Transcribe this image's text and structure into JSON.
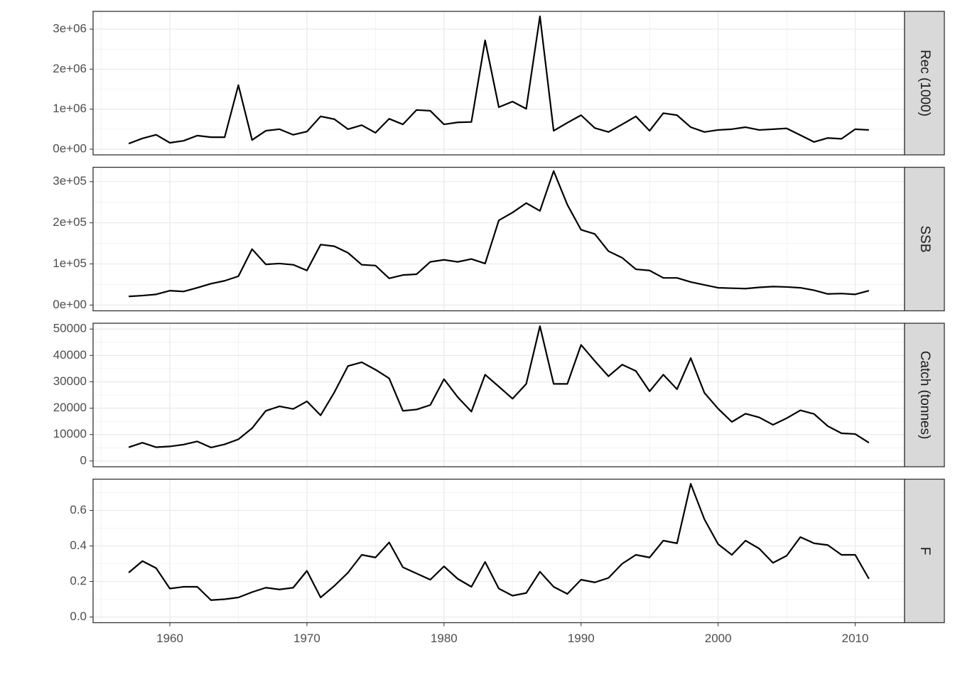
{
  "chart_data": [
    {
      "type": "line",
      "facet": "Rec (1000)",
      "color": "#000000",
      "grid": true,
      "x": [
        1957,
        1958,
        1959,
        1960,
        1961,
        1962,
        1963,
        1964,
        1965,
        1966,
        1967,
        1968,
        1969,
        1970,
        1971,
        1972,
        1973,
        1974,
        1975,
        1976,
        1977,
        1978,
        1979,
        1980,
        1981,
        1982,
        1983,
        1984,
        1985,
        1986,
        1987,
        1988,
        1989,
        1990,
        1991,
        1992,
        1993,
        1994,
        1995,
        1996,
        1997,
        1998,
        1999,
        2000,
        2001,
        2002,
        2003,
        2004,
        2005,
        2006,
        2007,
        2008,
        2009,
        2010,
        2011
      ],
      "values": [
        140000,
        270000,
        360000,
        160000,
        210000,
        340000,
        300000,
        300000,
        1600000,
        230000,
        460000,
        500000,
        360000,
        440000,
        820000,
        750000,
        500000,
        600000,
        410000,
        760000,
        620000,
        980000,
        960000,
        620000,
        670000,
        680000,
        2720000,
        1050000,
        1190000,
        1010000,
        3320000,
        460000,
        660000,
        850000,
        530000,
        430000,
        620000,
        820000,
        460000,
        900000,
        850000,
        550000,
        430000,
        480000,
        500000,
        550000,
        480000,
        500000,
        520000,
        350000,
        180000,
        280000,
        260000,
        500000,
        480000
      ],
      "xlim": [
        1954.4,
        2013.6
      ],
      "ylim": [
        -142000,
        3444000
      ],
      "yticks": [
        {
          "value": 0,
          "label": "0e+00"
        },
        {
          "value": 1000000,
          "label": "1e+06"
        },
        {
          "value": 2000000,
          "label": "2e+06"
        },
        {
          "value": 3000000,
          "label": "3e+06"
        }
      ]
    },
    {
      "type": "line",
      "facet": "SSB",
      "color": "#000000",
      "grid": true,
      "x": [
        1957,
        1958,
        1959,
        1960,
        1961,
        1962,
        1963,
        1964,
        1965,
        1966,
        1967,
        1968,
        1969,
        1970,
        1971,
        1972,
        1973,
        1974,
        1975,
        1976,
        1977,
        1978,
        1979,
        1980,
        1981,
        1982,
        1983,
        1984,
        1985,
        1986,
        1987,
        1988,
        1989,
        1990,
        1991,
        1992,
        1993,
        1994,
        1995,
        1996,
        1997,
        1998,
        1999,
        2000,
        2001,
        2002,
        2003,
        2004,
        2005,
        2006,
        2007,
        2008,
        2009,
        2010,
        2011
      ],
      "values": [
        21000,
        23000,
        26000,
        35000,
        33000,
        42000,
        52000,
        59000,
        70000,
        136000,
        99000,
        101000,
        98000,
        84000,
        147000,
        143000,
        127000,
        98000,
        96000,
        65000,
        73000,
        75000,
        105000,
        110000,
        105000,
        112000,
        101000,
        206000,
        225000,
        248000,
        229000,
        326000,
        244000,
        183000,
        173000,
        131000,
        115000,
        87000,
        84000,
        66000,
        66000,
        56000,
        49000,
        42000,
        41000,
        40000,
        43000,
        45000,
        44000,
        42000,
        36000,
        27000,
        28000,
        26000,
        35000
      ],
      "xlim": [
        1954.4,
        2013.6
      ],
      "ylim": [
        -14000,
        335000
      ],
      "yticks": [
        {
          "value": 0,
          "label": "0e+00"
        },
        {
          "value": 100000,
          "label": "1e+05"
        },
        {
          "value": 200000,
          "label": "2e+05"
        },
        {
          "value": 300000,
          "label": "3e+05"
        }
      ]
    },
    {
      "type": "line",
      "facet": "Catch (tonnes)",
      "color": "#000000",
      "grid": true,
      "x": [
        1957,
        1958,
        1959,
        1960,
        1961,
        1962,
        1963,
        1964,
        1965,
        1966,
        1967,
        1968,
        1969,
        1970,
        1971,
        1972,
        1973,
        1974,
        1975,
        1976,
        1977,
        1978,
        1979,
        1980,
        1981,
        1982,
        1983,
        1984,
        1985,
        1986,
        1987,
        1988,
        1989,
        1990,
        1991,
        1992,
        1993,
        1994,
        1995,
        1996,
        1997,
        1998,
        1999,
        2000,
        2001,
        2002,
        2003,
        2004,
        2005,
        2006,
        2007,
        2008,
        2009,
        2010,
        2011
      ],
      "values": [
        5200,
        6900,
        5200,
        5500,
        6200,
        7400,
        5100,
        6300,
        8200,
        12400,
        19000,
        20700,
        19700,
        22600,
        17300,
        26000,
        36000,
        37400,
        34600,
        31300,
        19000,
        19500,
        21200,
        31000,
        24200,
        18700,
        32700,
        28200,
        23600,
        29200,
        51100,
        29200,
        29200,
        44000,
        37900,
        32100,
        36500,
        34100,
        26400,
        32700,
        27200,
        39000,
        25800,
        19800,
        14800,
        17900,
        16500,
        13700,
        16200,
        19200,
        17800,
        13200,
        10500,
        10200,
        6900
      ],
      "xlim": [
        1954.4,
        2013.6
      ],
      "ylim": [
        -2200,
        52200
      ],
      "yticks": [
        0,
        10000,
        20000,
        30000,
        40000,
        50000
      ]
    },
    {
      "type": "line",
      "facet": "F",
      "color": "#000000",
      "grid": true,
      "x": [
        1957,
        1958,
        1959,
        1960,
        1961,
        1962,
        1963,
        1964,
        1965,
        1966,
        1967,
        1968,
        1969,
        1970,
        1971,
        1972,
        1973,
        1974,
        1975,
        1976,
        1977,
        1978,
        1979,
        1980,
        1981,
        1982,
        1983,
        1984,
        1985,
        1986,
        1987,
        1988,
        1989,
        1990,
        1991,
        1992,
        1993,
        1994,
        1995,
        1996,
        1997,
        1998,
        1999,
        2000,
        2001,
        2002,
        2003,
        2004,
        2005,
        2006,
        2007,
        2008,
        2009,
        2010,
        2011
      ],
      "values": [
        0.25,
        0.315,
        0.275,
        0.16,
        0.17,
        0.17,
        0.095,
        0.1,
        0.11,
        0.14,
        0.165,
        0.155,
        0.165,
        0.26,
        0.11,
        0.175,
        0.25,
        0.35,
        0.335,
        0.42,
        0.28,
        0.245,
        0.21,
        0.285,
        0.215,
        0.17,
        0.31,
        0.16,
        0.12,
        0.135,
        0.255,
        0.17,
        0.13,
        0.21,
        0.195,
        0.22,
        0.3,
        0.35,
        0.335,
        0.43,
        0.415,
        0.75,
        0.55,
        0.41,
        0.35,
        0.43,
        0.385,
        0.305,
        0.345,
        0.45,
        0.415,
        0.405,
        0.35,
        0.35,
        0.215
      ],
      "xlim": [
        1954.4,
        2013.6
      ],
      "ylim": [
        -0.032,
        0.776
      ],
      "yticks": [
        {
          "value": 0,
          "label": "0.0"
        },
        0.2,
        0.4,
        0.6
      ],
      "xticks": [
        1960,
        1970,
        1980,
        1990,
        2000,
        2010
      ]
    }
  ]
}
